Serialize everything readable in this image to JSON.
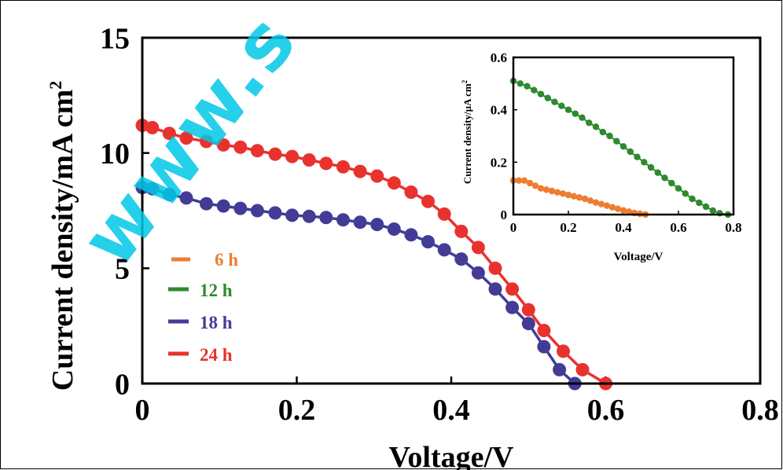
{
  "watermark": "www.s",
  "main": {
    "type": "line",
    "xlabel": "Voltage/V",
    "ylabel": "Current density/mA cm",
    "ylabel_sup": "2",
    "xlim": [
      0,
      0.8
    ],
    "ylim": [
      0,
      15
    ],
    "xticks": [
      "0",
      "0.2",
      "0.4",
      "0.6",
      "0.8"
    ],
    "yticks": [
      "0",
      "5",
      "10",
      "15"
    ],
    "legend": [
      "6 h",
      "12 h",
      "18 h",
      "24 h"
    ],
    "colors": {
      "6 h": "#ee7d31",
      "12 h": "#2e8a2e",
      "18 h": "#423c96",
      "24 h": "#e8322e"
    }
  },
  "inset": {
    "xlabel": "Voltage/V",
    "ylabel": "Current density/µA cm",
    "ylabel_sup": "2",
    "xlim": [
      0,
      0.8
    ],
    "ylim": [
      0,
      0.6
    ],
    "xticks": [
      "0",
      "0.2",
      "0.4",
      "0.6",
      "0.8"
    ],
    "yticks": [
      "0",
      "0.2",
      "0.4",
      "0.6"
    ]
  },
  "chart_data": [
    {
      "type": "line",
      "xlabel": "Voltage/V",
      "ylabel": "Current density/mA cm2",
      "xlim": [
        0,
        0.8
      ],
      "ylim": [
        0,
        15
      ],
      "series": [
        {
          "name": "18 h",
          "color": "#423c96",
          "x": [
            0.0,
            0.013,
            0.035,
            0.057,
            0.083,
            0.105,
            0.127,
            0.149,
            0.172,
            0.194,
            0.216,
            0.238,
            0.26,
            0.282,
            0.304,
            0.326,
            0.348,
            0.37,
            0.391,
            0.413,
            0.435,
            0.457,
            0.479,
            0.5,
            0.52,
            0.54,
            0.56
          ],
          "y": [
            8.5,
            8.45,
            8.2,
            8.05,
            7.8,
            7.7,
            7.6,
            7.5,
            7.4,
            7.3,
            7.25,
            7.2,
            7.1,
            7.0,
            6.9,
            6.7,
            6.45,
            6.15,
            5.8,
            5.4,
            4.8,
            4.1,
            3.3,
            2.6,
            1.6,
            0.6,
            0.0
          ]
        },
        {
          "name": "24 h",
          "color": "#e8322e",
          "x": [
            0.0,
            0.013,
            0.035,
            0.057,
            0.083,
            0.105,
            0.127,
            0.149,
            0.172,
            0.194,
            0.216,
            0.238,
            0.26,
            0.282,
            0.304,
            0.326,
            0.348,
            0.37,
            0.391,
            0.413,
            0.435,
            0.457,
            0.479,
            0.5,
            0.52,
            0.545,
            0.57,
            0.6
          ],
          "y": [
            11.2,
            11.1,
            10.85,
            10.65,
            10.5,
            10.35,
            10.25,
            10.1,
            9.95,
            9.85,
            9.7,
            9.55,
            9.4,
            9.2,
            9.0,
            8.7,
            8.3,
            7.9,
            7.35,
            6.6,
            5.9,
            5.0,
            4.1,
            3.2,
            2.3,
            1.4,
            0.6,
            0.0
          ]
        }
      ]
    },
    {
      "type": "line",
      "xlabel": "Voltage/V",
      "ylabel": "Current density/µA cm2",
      "xlim": [
        0,
        0.8
      ],
      "ylim": [
        0,
        0.6
      ],
      "series": [
        {
          "name": "6 h",
          "color": "#ee7d31",
          "x": [
            0.0,
            0.02,
            0.04,
            0.06,
            0.08,
            0.1,
            0.12,
            0.14,
            0.16,
            0.18,
            0.2,
            0.22,
            0.24,
            0.26,
            0.28,
            0.3,
            0.32,
            0.34,
            0.36,
            0.38,
            0.4,
            0.42,
            0.44,
            0.46,
            0.48
          ],
          "y": [
            0.13,
            0.13,
            0.13,
            0.12,
            0.11,
            0.1,
            0.095,
            0.09,
            0.085,
            0.08,
            0.075,
            0.07,
            0.065,
            0.06,
            0.053,
            0.046,
            0.04,
            0.034,
            0.028,
            0.022,
            0.016,
            0.011,
            0.006,
            0.003,
            0.0
          ]
        },
        {
          "name": "12 h",
          "color": "#2e8a2e",
          "x": [
            0.0,
            0.025,
            0.05,
            0.075,
            0.1,
            0.125,
            0.15,
            0.175,
            0.2,
            0.225,
            0.25,
            0.275,
            0.3,
            0.325,
            0.35,
            0.375,
            0.4,
            0.425,
            0.45,
            0.475,
            0.5,
            0.525,
            0.55,
            0.575,
            0.6,
            0.625,
            0.65,
            0.675,
            0.7,
            0.725,
            0.75,
            0.78
          ],
          "y": [
            0.51,
            0.5,
            0.49,
            0.475,
            0.46,
            0.445,
            0.43,
            0.415,
            0.4,
            0.385,
            0.37,
            0.35,
            0.335,
            0.315,
            0.3,
            0.28,
            0.26,
            0.24,
            0.22,
            0.2,
            0.18,
            0.16,
            0.14,
            0.12,
            0.1,
            0.08,
            0.06,
            0.045,
            0.03,
            0.015,
            0.005,
            0.0
          ]
        }
      ]
    }
  ]
}
